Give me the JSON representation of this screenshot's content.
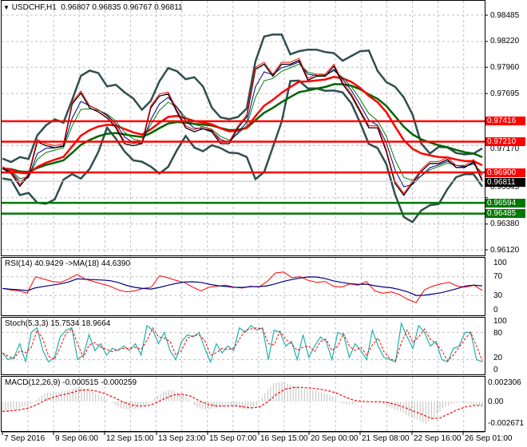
{
  "header": {
    "symbol": "USDCHF,H1",
    "ohlc": "0.96807 0.96835 0.96767 0.96811"
  },
  "indicators": {
    "rsi_label": "RSI(14) 40.9429  ->MA(18) 44.6390",
    "stoch_label": "Stoch(5,3,3) 15.7534 18.9664",
    "macd_label": "MACD(12,26,9) -0.000515 -0.000259"
  },
  "colors": {
    "resistance": "#ff0000",
    "support": "#007800",
    "bands": "#2f4f4f",
    "rsi": "#ff0000",
    "rsi_ma": "#000080",
    "stoch_main": "#20b2aa",
    "stoch_signal": "#ff0000",
    "macd_hist": "#c0c0c0",
    "macd_signal": "#ff0000"
  },
  "chart_data": [
    {
      "type": "line",
      "title": "USDCHF,H1",
      "ylim": [
        0.9612,
        0.98485
      ],
      "y_ticks": [
        "0.98485",
        "0.98220",
        "0.97960",
        "0.97695",
        "0.97170",
        "0.96645",
        "0.96380",
        "0.96120"
      ],
      "x_ticks": [
        "7 Sep 2016",
        "9 Sep 06:00",
        "12 Sep 15:00",
        "13 Sep 23:00",
        "15 Sep 07:00",
        "16 Sep 15:00",
        "20 Sep 00:00",
        "21 Sep 08:00",
        "22 Sep 16:00",
        "26 Sep 01:00"
      ],
      "close": [
        0.9694,
        0.9689,
        0.9676,
        0.9687,
        0.9721,
        0.9717,
        0.9715,
        0.9717,
        0.9759,
        0.977,
        0.9755,
        0.9751,
        0.9745,
        0.9735,
        0.9719,
        0.9717,
        0.9719,
        0.9755,
        0.9767,
        0.9769,
        0.9751,
        0.9735,
        0.9731,
        0.9734,
        0.9731,
        0.9719,
        0.9719,
        0.9735,
        0.9746,
        0.9794,
        0.9799,
        0.9787,
        0.9799,
        0.9799,
        0.9803,
        0.9783,
        0.9787,
        0.9787,
        0.9797,
        0.9779,
        0.9767,
        0.9751,
        0.9735,
        0.9735,
        0.9711,
        0.9679,
        0.9667,
        0.9679,
        0.9691,
        0.9699,
        0.9699,
        0.9703,
        0.9695,
        0.9695,
        0.9701,
        0.96811
      ],
      "levels": [
        {
          "label": "0.97416",
          "value": 0.97416,
          "kind": "resistance"
        },
        {
          "label": "0.97210",
          "value": 0.9721,
          "kind": "resistance"
        },
        {
          "label": "0.96900",
          "value": 0.969,
          "kind": "resistance"
        },
        {
          "label": "0.96811",
          "value": 0.96811,
          "kind": "current"
        },
        {
          "label": "0.96594",
          "value": 0.96594,
          "kind": "support"
        },
        {
          "label": "0.96485",
          "value": 0.96485,
          "kind": "support"
        }
      ],
      "grid": true
    },
    {
      "type": "line",
      "title": "RSI(14)",
      "ylim": [
        0,
        100
      ],
      "y_ticks": [
        "100",
        "70",
        "30",
        "0"
      ],
      "rsi": [
        45,
        42,
        40,
        35,
        70,
        65,
        60,
        58,
        65,
        75,
        65,
        60,
        55,
        50,
        42,
        38,
        40,
        45,
        48,
        72,
        68,
        62,
        58,
        48,
        40,
        48,
        50,
        52,
        48,
        46,
        50,
        48,
        60,
        78,
        80,
        68,
        70,
        62,
        58,
        60,
        50,
        48,
        55,
        52,
        60,
        40,
        35,
        38,
        32,
        22,
        15,
        42,
        50,
        55,
        58,
        50,
        48,
        52,
        41
      ]
    },
    {
      "type": "line",
      "title": "Stoch(5,3,3)",
      "ylim": [
        0,
        100
      ],
      "y_ticks": [
        "100",
        "80",
        "20",
        "0"
      ],
      "main": [
        35,
        20,
        25,
        55,
        15,
        80,
        90,
        40,
        15,
        25,
        70,
        85,
        90,
        20,
        30,
        75,
        40,
        55,
        30,
        45,
        40,
        50,
        40,
        55,
        30,
        95,
        85,
        55,
        80,
        40,
        20,
        60,
        75,
        70,
        80,
        45,
        15,
        55,
        35,
        50,
        40,
        90,
        80,
        95,
        85,
        90,
        20,
        85,
        80,
        50,
        60,
        20,
        75,
        25,
        50,
        70,
        60,
        20,
        80,
        75,
        25,
        55,
        40,
        20,
        85,
        50,
        25,
        20,
        15,
        100,
        70,
        45,
        95,
        80,
        50,
        60,
        20,
        15,
        45,
        50,
        80,
        80,
        20,
        15
      ]
    },
    {
      "type": "bar",
      "title": "MACD(12,26,9)",
      "ylim": [
        -0.002671,
        0.002306
      ],
      "y_ticks": [
        "0.002306",
        "0.00",
        "-0.002671"
      ],
      "histogram": [
        -0.0012,
        -0.001,
        -0.0008,
        -0.0005,
        0.0002,
        0.001,
        0.0011,
        0.0012,
        0.0014,
        0.0018,
        0.0015,
        0.001,
        0.0005,
        -0.0002,
        -0.0008,
        -0.001,
        -0.0008,
        -0.0004,
        0.0004,
        0.0012,
        0.0014,
        0.001,
        0.0003,
        -0.0008,
        -0.001,
        -0.0008,
        -0.0006,
        -0.0004,
        -0.0008,
        -0.001,
        -0.0005,
        0.001,
        0.0022,
        0.0024,
        0.002,
        0.0017,
        0.0015,
        0.0013,
        0.001,
        0.0006,
        -0.0002,
        -0.0004,
        -0.0002,
        -0.0001,
        0.0,
        -0.0003,
        -0.0008,
        -0.0012,
        -0.0018,
        -0.0022,
        -0.0027,
        -0.002,
        -0.0008,
        -0.0003,
        -0.0001,
        -0.0002,
        -0.0005
      ]
    }
  ]
}
